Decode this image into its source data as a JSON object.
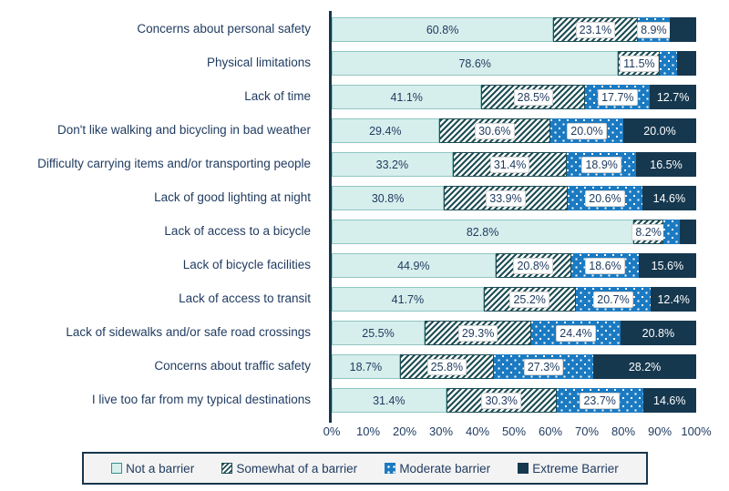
{
  "colors": {
    "text": "#1e3a5f",
    "axis": "#17364d",
    "not_fill": "#d6eeec",
    "not_border": "#8fc6c2",
    "not_border_dark": "#35918c",
    "hatch": "#1d4e55",
    "moderate": "#1b7ac1",
    "extreme": "#16384f",
    "legend_border": "#17364d",
    "legend_bg": "#f3f3f3"
  },
  "chart_data": {
    "type": "bar",
    "stacked": true,
    "orientation": "horizontal",
    "xlim": [
      0,
      100
    ],
    "grid": false,
    "legend_position": "bottom",
    "x_ticks": [
      "0%",
      "10%",
      "20%",
      "30%",
      "40%",
      "50%",
      "60%",
      "70%",
      "80%",
      "90%",
      "100%"
    ],
    "categories": [
      "Concerns about personal safety",
      "Physical limitations",
      "Lack of time",
      "Don't like walking and bicycling in bad weather",
      "Difficulty carrying items and/or transporting people",
      "Lack of good lighting at night",
      "Lack of access to a bicycle",
      "Lack of bicycle facilities",
      "Lack of access to transit",
      "Lack of sidewalks and/or safe road crossings",
      "Concerns about traffic safety",
      "I live too far from my typical destinations"
    ],
    "series": [
      {
        "id": "not",
        "name": "Not a barrier",
        "values": [
          60.8,
          78.6,
          41.1,
          29.4,
          33.2,
          30.8,
          82.8,
          44.9,
          41.7,
          25.5,
          18.7,
          31.4
        ],
        "labels": [
          "60.8%",
          "78.6%",
          "41.1%",
          "29.4%",
          "33.2%",
          "30.8%",
          "82.8%",
          "44.9%",
          "41.7%",
          "25.5%",
          "18.7%",
          "31.4%"
        ]
      },
      {
        "id": "somewhat",
        "name": "Somewhat of a barrier",
        "values": [
          23.1,
          11.5,
          28.5,
          30.6,
          31.4,
          33.9,
          8.2,
          20.8,
          25.2,
          29.3,
          25.8,
          30.3
        ],
        "labels": [
          "23.1%",
          "11.5%",
          "28.5%",
          "30.6%",
          "31.4%",
          "33.9%",
          "8.2%",
          "20.8%",
          "25.2%",
          "29.3%",
          "25.8%",
          "30.3%"
        ]
      },
      {
        "id": "moderate",
        "name": "Moderate barrier",
        "values": [
          8.9,
          4.7,
          17.7,
          20.0,
          18.9,
          20.6,
          4.5,
          18.6,
          20.7,
          24.4,
          27.3,
          23.7
        ],
        "labels": [
          "8.9%",
          "",
          "17.7%",
          "20.0%",
          "18.9%",
          "20.6%",
          "",
          "18.6%",
          "20.7%",
          "24.4%",
          "27.3%",
          "23.7%"
        ]
      },
      {
        "id": "extreme",
        "name": "Extreme Barrier",
        "values": [
          7.2,
          5.2,
          12.7,
          20.0,
          16.5,
          14.6,
          4.5,
          15.6,
          12.4,
          20.8,
          28.2,
          14.6
        ],
        "labels": [
          "",
          "",
          "12.7%",
          "20.0%",
          "16.5%",
          "14.6%",
          "",
          "15.6%",
          "12.4%",
          "20.8%",
          "28.2%",
          "14.6%"
        ]
      }
    ]
  },
  "legend": {
    "items": [
      {
        "id": "not",
        "label": "Not a barrier"
      },
      {
        "id": "somewhat",
        "label": "Somewhat of a barrier"
      },
      {
        "id": "moderate",
        "label": "Moderate barrier"
      },
      {
        "id": "extreme",
        "label": "Extreme Barrier"
      }
    ]
  }
}
